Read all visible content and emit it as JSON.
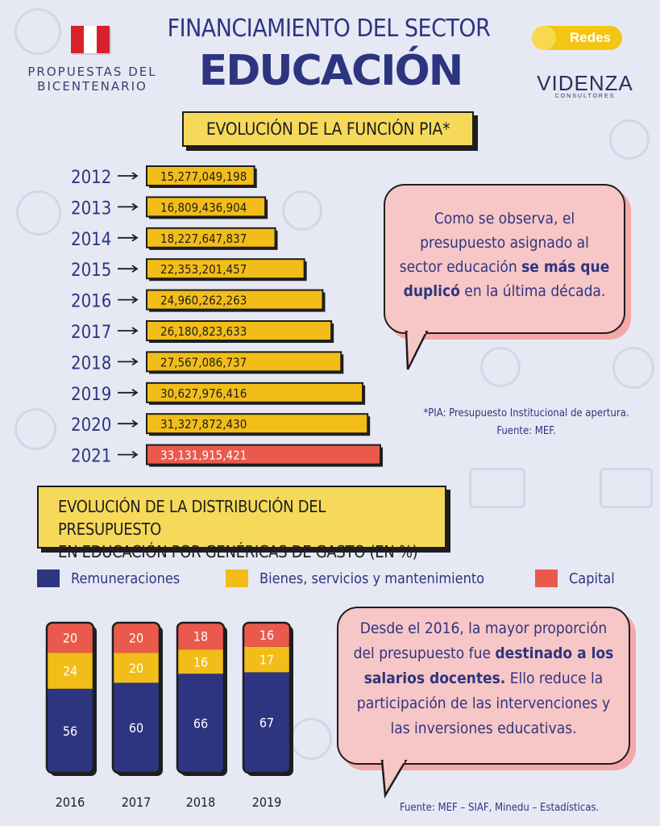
{
  "header": {
    "title_line1": "FINANCIAMIENTO DEL SECTOR",
    "title_line2": "EDUCACIÓN",
    "brand_line1": "PROPUESTAS DEL",
    "brand_line2": "BICENTENARIO",
    "badge": "Redes",
    "logo_name": "VIDENZA",
    "logo_sub": "CONSULTORES",
    "flag_icon": "peru-flag-icon"
  },
  "section1": {
    "heading": "EVOLUCIÓN DE LA FUNCIÓN PIA*"
  },
  "section2": {
    "heading_line1": "EVOLUCIÓN DE LA DISTRIBUCIÓN DEL PRESUPUESTO",
    "heading_line2": "EN EDUCACIÓN POR GENÉRICAS DE GASTO (EN %)"
  },
  "bubble1": {
    "text_pre": "Como se observa, el presupuesto asignado al sector educación ",
    "text_bold": "se más que duplicó",
    "text_post": " en la última década."
  },
  "note": {
    "line1": "*PIA: Presupuesto Institucional de apertura.",
    "line2": "Fuente: MEF."
  },
  "bubble2": {
    "text_pre": "Desde el 2016, la mayor proporción del presupuesto fue ",
    "text_bold": "destinado a los salarios docentes.",
    "text_post": " Ello reduce la participación de las intervenciones y las inversiones educativas."
  },
  "source": "Fuente: MEF – SIAF, Minedu – Estadísticas.",
  "colors": {
    "navy": "#2d3580",
    "yellow": "#f2bd18",
    "red": "#ea5a4c",
    "pink": "#f7c6c6"
  },
  "chart_data": [
    {
      "type": "bar",
      "orientation": "horizontal",
      "categories": [
        "2012",
        "2013",
        "2014",
        "2015",
        "2016",
        "2017",
        "2018",
        "2019",
        "2020",
        "2021"
      ],
      "values": [
        15277049198,
        16809436904,
        18227647837,
        22353201457,
        24960262263,
        26180823633,
        27567086737,
        30627976416,
        31327872430,
        33131915421
      ],
      "labels": [
        "15,277,049,198",
        "16,809,436,904",
        "18,227,647,837",
        "22,353,201,457",
        "24,960,262,263",
        "26,180,823,633",
        "27,567,086,737",
        "30,627,976,416",
        "31,327,872,430",
        "33,131,915,421"
      ],
      "highlight": "2021",
      "title": "EVOLUCIÓN DE LA FUNCIÓN PIA*"
    },
    {
      "type": "bar",
      "stacked": true,
      "categories": [
        "2016",
        "2017",
        "2018",
        "2019"
      ],
      "series": [
        {
          "name": "Remuneraciones",
          "values": [
            56,
            60,
            66,
            67
          ],
          "color": "#2d3580"
        },
        {
          "name": "Bienes, servicios y mantenimiento",
          "values": [
            24,
            20,
            16,
            17
          ],
          "color": "#f2bd18"
        },
        {
          "name": "Capital",
          "values": [
            20,
            20,
            18,
            16
          ],
          "color": "#ea5a4c"
        }
      ],
      "ylim": [
        0,
        100
      ],
      "legend": "top"
    }
  ]
}
